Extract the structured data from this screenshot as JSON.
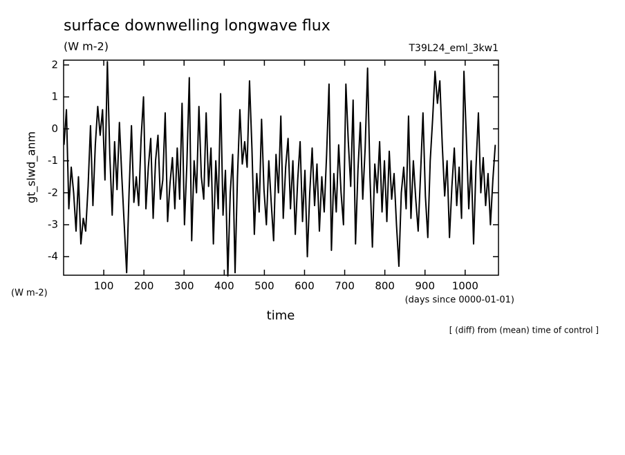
{
  "chart_data": {
    "type": "line",
    "title": "surface downwelling longwave flux",
    "units_top": "(W m-2)",
    "run_label": "T39L24_eml_3kw1",
    "y_label": "gt_slwd_anm",
    "units_left": "(W m-2)",
    "x_label": "time",
    "x_units": "(days since 0000-01-01)",
    "note": "[ (diff) from (mean) time of control ]",
    "xlim": [
      0,
      1083
    ],
    "ylim": [
      -4.58,
      2.15
    ],
    "xticks": [
      100,
      200,
      300,
      400,
      500,
      600,
      700,
      800,
      900,
      1000
    ],
    "yticks": [
      -4,
      -3,
      -2,
      -1,
      0,
      1,
      2
    ],
    "x": [
      1,
      7,
      13,
      19,
      25,
      31,
      37,
      43,
      49,
      55,
      61,
      67,
      73,
      79,
      85,
      91,
      97,
      103,
      109,
      115,
      121,
      127,
      133,
      139,
      145,
      151,
      157,
      163,
      169,
      175,
      181,
      187,
      193,
      199,
      205,
      211,
      217,
      223,
      229,
      235,
      241,
      247,
      253,
      259,
      265,
      271,
      277,
      283,
      289,
      295,
      301,
      307,
      313,
      319,
      325,
      331,
      337,
      343,
      349,
      355,
      361,
      367,
      373,
      379,
      385,
      391,
      397,
      403,
      409,
      415,
      421,
      427,
      433,
      439,
      445,
      451,
      457,
      463,
      469,
      475,
      481,
      487,
      493,
      499,
      505,
      511,
      517,
      523,
      529,
      535,
      541,
      547,
      553,
      559,
      565,
      571,
      577,
      583,
      589,
      595,
      601,
      607,
      613,
      619,
      625,
      631,
      637,
      643,
      649,
      655,
      661,
      667,
      673,
      679,
      685,
      691,
      697,
      703,
      709,
      715,
      721,
      727,
      733,
      739,
      745,
      751,
      757,
      763,
      769,
      775,
      781,
      787,
      793,
      799,
      805,
      811,
      817,
      823,
      829,
      835,
      841,
      847,
      853,
      859,
      865,
      871,
      877,
      883,
      889,
      895,
      901,
      907,
      913,
      919,
      925,
      931,
      937,
      943,
      949,
      955,
      961,
      967,
      973,
      979,
      985,
      991,
      997,
      1003,
      1009,
      1015,
      1021,
      1027,
      1033,
      1039,
      1045,
      1051,
      1057,
      1063,
      1069,
      1075
    ],
    "series": [
      {
        "color": "#000000",
        "values": [
          -0.5,
          0.6,
          -2.5,
          -1.2,
          -2.0,
          -3.2,
          -1.5,
          -3.6,
          -2.8,
          -3.2,
          -1.8,
          0.1,
          -2.4,
          -0.5,
          0.7,
          -0.2,
          0.6,
          -1.6,
          2.1,
          -0.8,
          -2.7,
          -0.4,
          -1.9,
          0.2,
          -1.5,
          -3.0,
          -4.5,
          -2.0,
          0.1,
          -2.3,
          -1.5,
          -2.4,
          -0.3,
          1.0,
          -2.5,
          -1.2,
          -0.3,
          -2.8,
          -1.0,
          -0.2,
          -2.2,
          -1.6,
          0.5,
          -2.9,
          -1.7,
          -0.9,
          -2.5,
          -0.6,
          -2.2,
          0.8,
          -3.0,
          -1.1,
          1.6,
          -3.5,
          -1.0,
          -2.0,
          0.7,
          -1.5,
          -2.2,
          0.5,
          -1.8,
          -0.6,
          -3.6,
          -1.0,
          -2.5,
          1.1,
          -2.7,
          -1.3,
          -4.6,
          -2.0,
          -0.8,
          -4.5,
          -1.5,
          0.6,
          -1.1,
          -0.4,
          -1.2,
          1.5,
          -0.6,
          -3.3,
          -1.4,
          -2.6,
          0.3,
          -1.9,
          -3.0,
          -1.0,
          -2.3,
          -3.5,
          -0.8,
          -2.0,
          0.4,
          -2.8,
          -1.2,
          -0.3,
          -2.5,
          -1.0,
          -3.3,
          -1.6,
          -0.4,
          -2.9,
          -1.3,
          -4.0,
          -2.0,
          -0.6,
          -2.4,
          -1.1,
          -3.2,
          -1.5,
          -2.6,
          -0.8,
          1.4,
          -3.8,
          -1.4,
          -2.6,
          -0.5,
          -2.0,
          -3.0,
          1.4,
          -0.4,
          -1.8,
          0.9,
          -3.6,
          -1.3,
          0.2,
          -2.2,
          -0.6,
          1.9,
          -1.5,
          -3.7,
          -1.1,
          -2.0,
          -0.4,
          -2.6,
          -1.0,
          -2.9,
          -0.7,
          -2.2,
          -1.4,
          -3.0,
          -4.3,
          -2.0,
          -1.2,
          -2.5,
          0.4,
          -2.8,
          -1.0,
          -2.2,
          -3.2,
          -1.4,
          0.5,
          -2.1,
          -3.4,
          -1.0,
          0.3,
          1.8,
          0.8,
          1.5,
          -0.5,
          -2.1,
          -1.0,
          -3.4,
          -1.8,
          -0.6,
          -2.4,
          -1.2,
          -2.8,
          1.8,
          -0.3,
          -2.5,
          -1.0,
          -3.6,
          -1.2,
          0.5,
          -2.0,
          -0.9,
          -2.4,
          -1.4,
          -3.0,
          -1.6,
          -0.5
        ]
      }
    ]
  }
}
